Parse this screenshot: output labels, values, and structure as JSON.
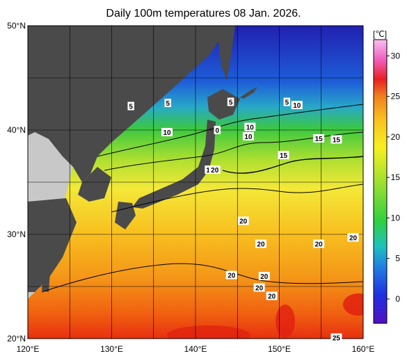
{
  "title": "Daily 100m temperatures 08 Jan. 2026.",
  "map": {
    "lat_ticks": [
      {
        "value": 50,
        "label": "50°N"
      },
      {
        "value": 40,
        "label": "40°N"
      },
      {
        "value": 30,
        "label": "30°N"
      },
      {
        "value": 20,
        "label": "20°N"
      }
    ],
    "lon_ticks": [
      {
        "value": 120,
        "label": "120°E"
      },
      {
        "value": 130,
        "label": "130°E"
      },
      {
        "value": 140,
        "label": "140°E"
      },
      {
        "value": 150,
        "label": "150°E"
      },
      {
        "value": 160,
        "label": "160°E"
      }
    ],
    "lon_range": [
      120,
      160
    ],
    "lat_range": [
      20,
      50
    ],
    "land_color": "#4a4a4a",
    "other_land_color": "#c8c8c8"
  },
  "colorbar": {
    "unit": "[℃]",
    "range": [
      -3,
      32
    ],
    "ticks": [
      {
        "value": 30,
        "label": "30"
      },
      {
        "value": 25,
        "label": "25"
      },
      {
        "value": 20,
        "label": "20"
      },
      {
        "value": 15,
        "label": "15"
      },
      {
        "value": 10,
        "label": "10"
      },
      {
        "value": 5,
        "label": "5"
      },
      {
        "value": 0,
        "label": "0"
      }
    ]
  },
  "contour_labels": [
    {
      "text": "5",
      "lon": 132.3,
      "lat": 42.3
    },
    {
      "text": "5",
      "lon": 136.7,
      "lat": 42.6
    },
    {
      "text": "5",
      "lon": 144.2,
      "lat": 42.7
    },
    {
      "text": "5",
      "lon": 150.9,
      "lat": 42.7
    },
    {
      "text": "10",
      "lon": 152.1,
      "lat": 42.4
    },
    {
      "text": "10",
      "lon": 136.6,
      "lat": 39.8
    },
    {
      "text": "0",
      "lon": 142.6,
      "lat": 40.0
    },
    {
      "text": "10",
      "lon": 146.5,
      "lat": 40.3
    },
    {
      "text": "10",
      "lon": 146.3,
      "lat": 39.4
    },
    {
      "text": "15",
      "lon": 154.7,
      "lat": 39.2
    },
    {
      "text": "15",
      "lon": 156.8,
      "lat": 39.1
    },
    {
      "text": "15",
      "lon": 150.5,
      "lat": 37.6
    },
    {
      "text": "1",
      "lon": 141.5,
      "lat": 36.2
    },
    {
      "text": "20",
      "lon": 142.3,
      "lat": 36.2
    },
    {
      "text": "20",
      "lon": 145.7,
      "lat": 31.3
    },
    {
      "text": "20",
      "lon": 158.8,
      "lat": 29.7
    },
    {
      "text": "20",
      "lon": 147.8,
      "lat": 29.1
    },
    {
      "text": "20",
      "lon": 154.7,
      "lat": 29.1
    },
    {
      "text": "20",
      "lon": 144.3,
      "lat": 26.1
    },
    {
      "text": "20",
      "lon": 148.2,
      "lat": 26.0
    },
    {
      "text": "20",
      "lon": 147.6,
      "lat": 24.9
    },
    {
      "text": "20",
      "lon": 149.1,
      "lat": 24.1
    },
    {
      "text": "25",
      "lon": 156.8,
      "lat": 20.1
    }
  ]
}
